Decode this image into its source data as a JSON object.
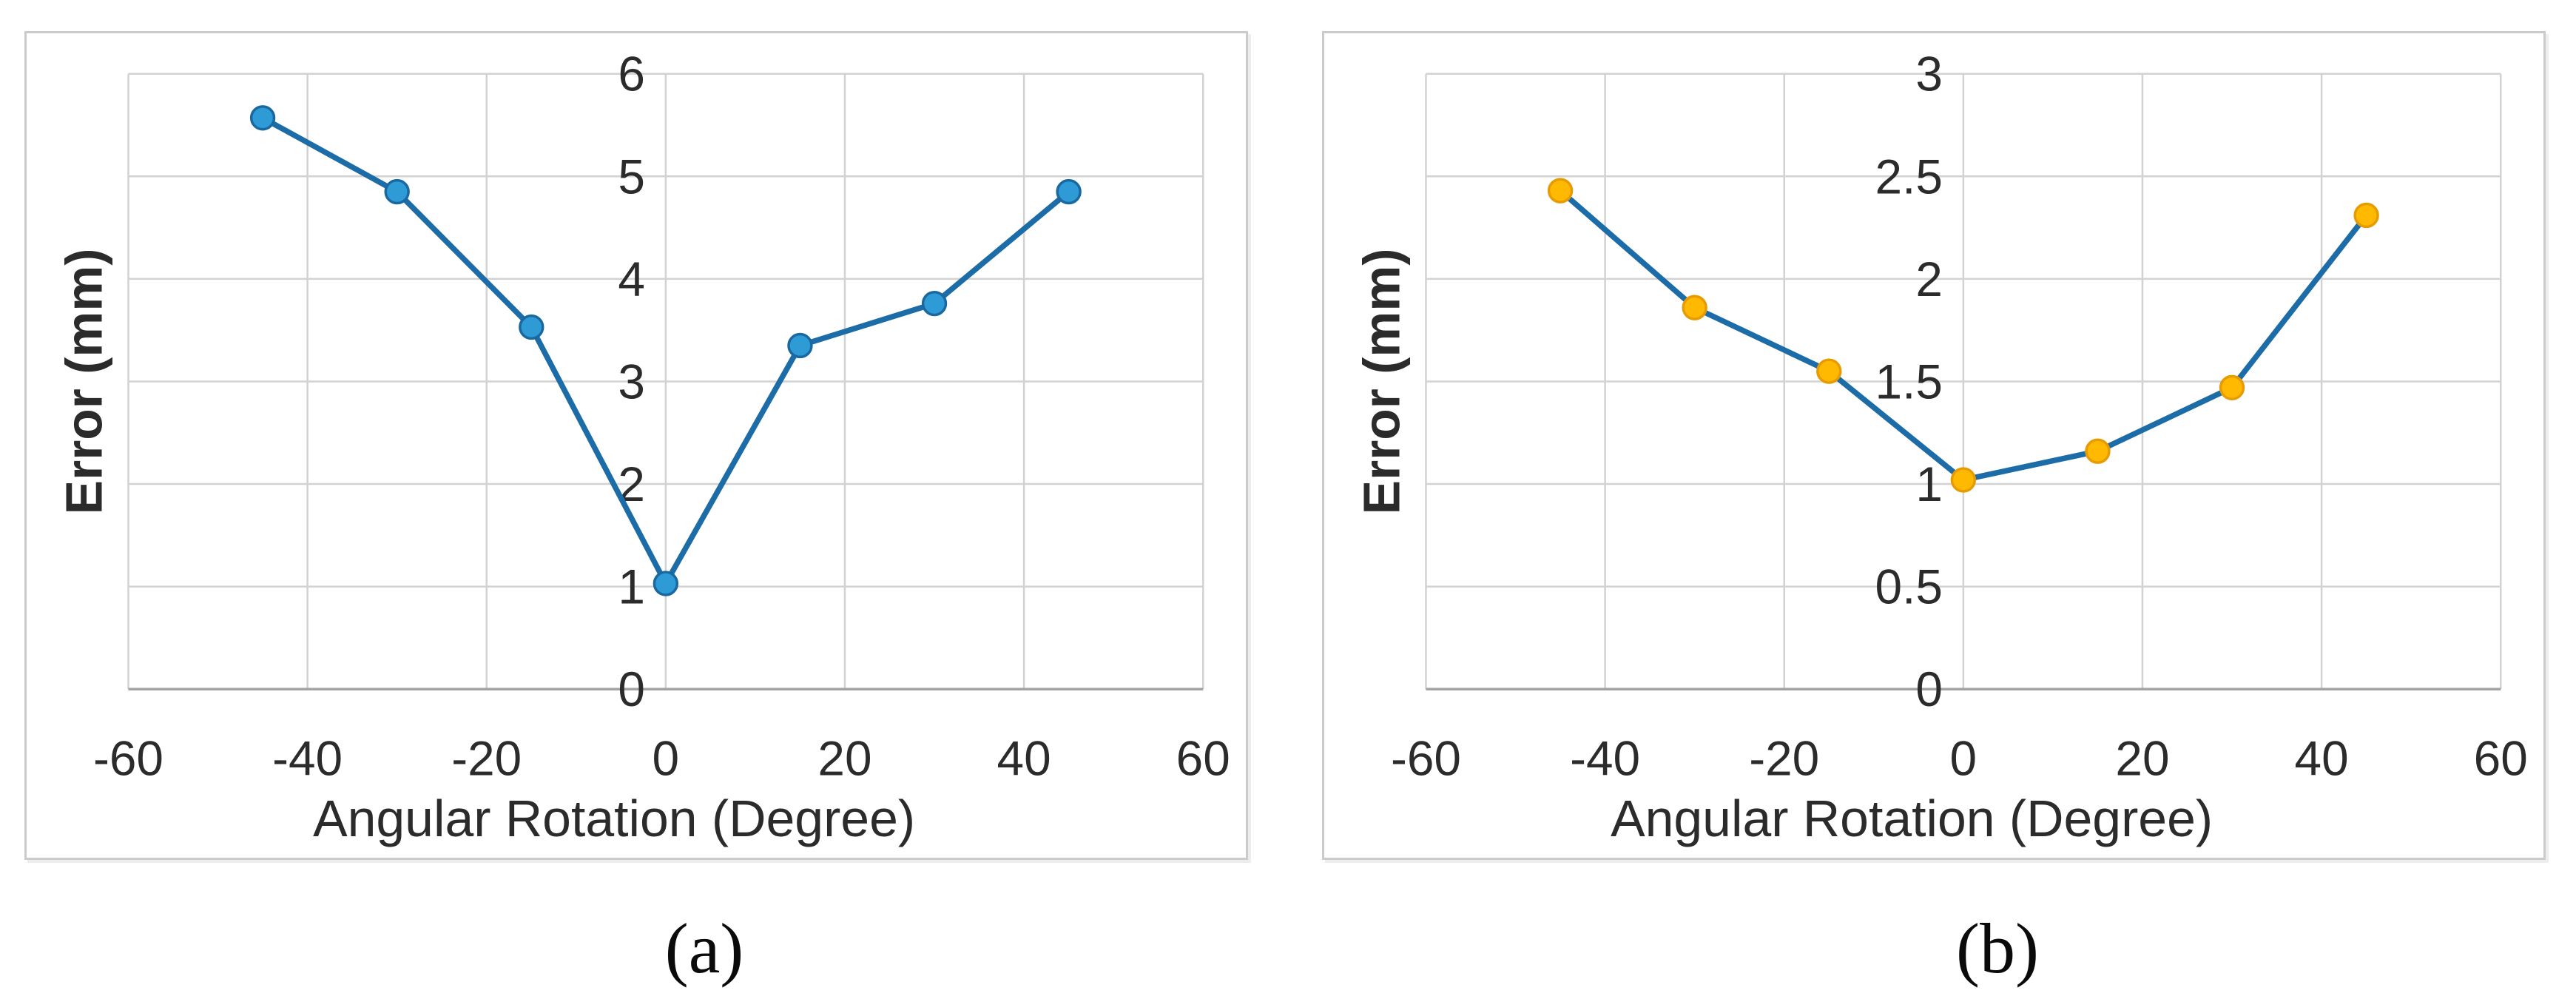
{
  "figure": {
    "captions": {
      "a": "(a)",
      "b": "(b)"
    },
    "colors": {
      "background": "#FFFFFF",
      "panel_border": "#CBCBCB"
    }
  },
  "chart_data": [
    {
      "id": "a",
      "type": "line",
      "title": "",
      "xlabel": "Angular Rotation (Degree)",
      "ylabel": "Error (mm)",
      "x": [
        -45,
        -30,
        -15,
        0,
        15,
        30,
        45
      ],
      "values": [
        5.57,
        4.85,
        3.53,
        1.03,
        3.35,
        3.76,
        4.85
      ],
      "xlim": [
        -60,
        60
      ],
      "ylim": [
        0,
        6
      ],
      "x_ticks": [
        -60,
        -40,
        -20,
        0,
        20,
        40,
        60
      ],
      "y_ticks": [
        0,
        1,
        2,
        3,
        4,
        5,
        6
      ],
      "grid": true,
      "legend": "none",
      "line_color": "#1C6CA8",
      "marker_fill": "#2E9BD6",
      "marker_stroke": "#19689F",
      "grid_color": "#D2D2D2",
      "axis_color": "#A3A3A3",
      "text_color": "#2B2B2B"
    },
    {
      "id": "b",
      "type": "line",
      "title": "",
      "xlabel": "Angular Rotation (Degree)",
      "ylabel": "Error (mm)",
      "x": [
        -45,
        -30,
        -15,
        0,
        15,
        30,
        45
      ],
      "values": [
        2.43,
        1.86,
        1.55,
        1.02,
        1.16,
        1.47,
        2.31
      ],
      "xlim": [
        -60,
        60
      ],
      "ylim": [
        0,
        3
      ],
      "x_ticks": [
        -60,
        -40,
        -20,
        0,
        20,
        40,
        60
      ],
      "y_ticks": [
        0,
        0.5,
        1,
        1.5,
        2,
        2.5,
        3
      ],
      "grid": true,
      "legend": "none",
      "line_color": "#1C6CA8",
      "marker_fill": "#FFB900",
      "marker_stroke": "#E89B00",
      "grid_color": "#D2D2D2",
      "axis_color": "#A3A3A3",
      "text_color": "#2B2B2B"
    }
  ]
}
